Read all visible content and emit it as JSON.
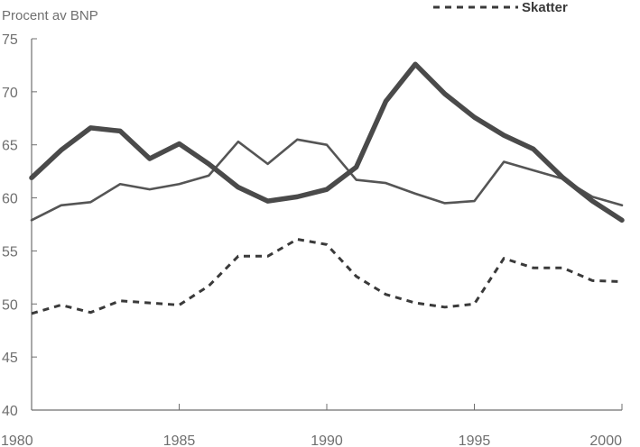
{
  "chart_data": {
    "type": "line",
    "ylabel": "Procent av BNP",
    "xlim": [
      1980,
      2000
    ],
    "ylim": [
      40,
      75
    ],
    "x_ticks": [
      1980,
      1985,
      1990,
      1995,
      2000
    ],
    "y_ticks": [
      40,
      45,
      50,
      55,
      60,
      65,
      70,
      75
    ],
    "grid": false,
    "legend_position": "top-right",
    "series": [
      {
        "style": "thick-solid",
        "color": "#4a4a4a",
        "x": [
          1980,
          1981,
          1982,
          1983,
          1984,
          1985,
          1986,
          1987,
          1988,
          1989,
          1990,
          1991,
          1992,
          1993,
          1994,
          1995,
          1996,
          1997,
          1998,
          1999,
          2000
        ],
        "values": [
          61.9,
          64.5,
          66.6,
          66.3,
          63.7,
          65.1,
          63.2,
          61.0,
          59.7,
          60.1,
          60.8,
          62.9,
          69.1,
          72.6,
          69.8,
          67.6,
          65.9,
          64.6,
          61.9,
          59.7,
          57.9
        ]
      },
      {
        "style": "thin-solid",
        "color": "#555555",
        "x": [
          1980,
          1981,
          1982,
          1983,
          1984,
          1985,
          1986,
          1987,
          1988,
          1989,
          1990,
          1991,
          1992,
          1993,
          1994,
          1995,
          1996,
          1997,
          1998,
          1999,
          2000
        ],
        "values": [
          57.9,
          59.3,
          59.6,
          61.3,
          60.8,
          61.3,
          62.1,
          65.3,
          63.2,
          65.5,
          65.0,
          61.7,
          61.4,
          60.4,
          59.5,
          59.7,
          63.4,
          62.6,
          61.8,
          60.1,
          59.3
        ]
      },
      {
        "name": "Skatter",
        "style": "dotted",
        "color": "#3a3a3a",
        "x": [
          1980,
          1981,
          1982,
          1983,
          1984,
          1985,
          1986,
          1987,
          1988,
          1989,
          1990,
          1991,
          1992,
          1993,
          1994,
          1995,
          1996,
          1997,
          1998,
          1999,
          2000
        ],
        "values": [
          49.1,
          49.9,
          49.2,
          50.3,
          50.1,
          49.9,
          51.7,
          54.5,
          54.5,
          56.1,
          55.6,
          52.6,
          50.9,
          50.1,
          49.7,
          50.0,
          54.3,
          53.4,
          53.4,
          52.2,
          52.1
        ]
      }
    ]
  }
}
